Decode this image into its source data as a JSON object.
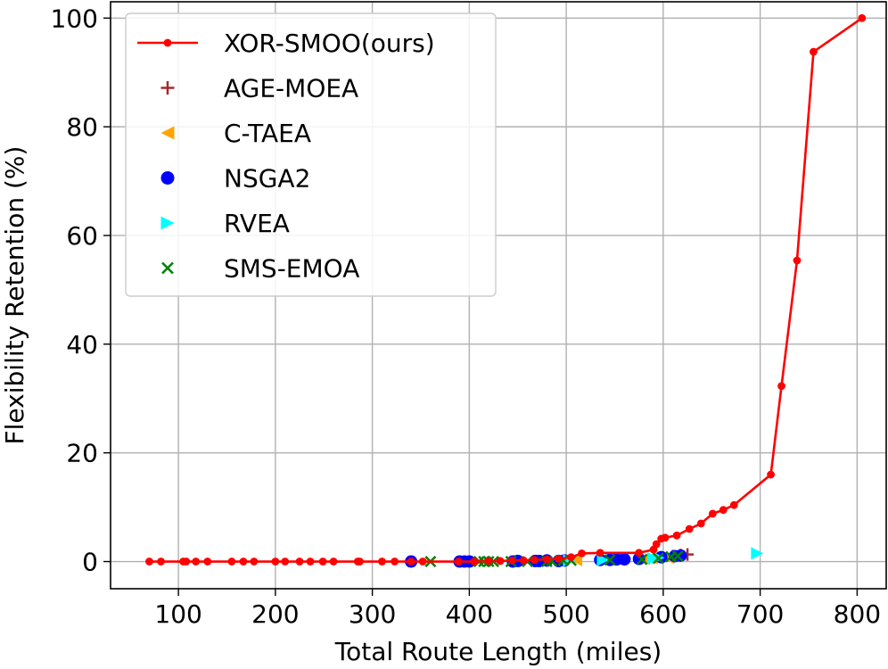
{
  "chart_data": {
    "type": "scatter",
    "title": "",
    "xlabel": "Total Route Length (miles)",
    "ylabel": "Flexibility Retention (%)",
    "xlim": [
      30,
      830
    ],
    "ylim": [
      -5,
      103
    ],
    "grid": true,
    "legend_position": "top-left",
    "x_ticks": [
      100,
      200,
      300,
      400,
      500,
      600,
      700,
      800
    ],
    "y_ticks": [
      0,
      20,
      40,
      60,
      80,
      100
    ],
    "series": [
      {
        "name": "XOR-SMOO(ours)",
        "kind": "line",
        "color": "#ff0000",
        "marker": "dot",
        "points": [
          [
            70,
            0
          ],
          [
            82,
            0
          ],
          [
            105,
            0
          ],
          [
            108,
            0
          ],
          [
            118,
            0
          ],
          [
            130,
            0
          ],
          [
            155,
            0
          ],
          [
            167,
            0
          ],
          [
            178,
            0
          ],
          [
            200,
            0
          ],
          [
            210,
            0
          ],
          [
            225,
            0
          ],
          [
            236,
            0
          ],
          [
            249,
            0
          ],
          [
            260,
            0
          ],
          [
            285,
            0
          ],
          [
            287,
            0
          ],
          [
            310,
            0
          ],
          [
            323,
            0
          ],
          [
            340,
            0
          ],
          [
            352,
            0
          ],
          [
            389,
            0
          ],
          [
            405,
            0
          ],
          [
            420,
            0.1
          ],
          [
            432,
            0.1
          ],
          [
            444,
            0.2
          ],
          [
            456,
            0.2
          ],
          [
            467,
            0.3
          ],
          [
            480,
            0.4
          ],
          [
            492,
            0.5
          ],
          [
            505,
            0.8
          ],
          [
            516,
            1.5
          ],
          [
            535,
            1.6
          ],
          [
            575,
            1.6
          ],
          [
            590,
            2.2
          ],
          [
            593,
            3.2
          ],
          [
            598,
            4.2
          ],
          [
            602,
            4.4
          ],
          [
            614,
            4.8
          ],
          [
            627,
            6
          ],
          [
            639,
            7
          ],
          [
            651,
            8.8
          ],
          [
            662,
            9.5
          ],
          [
            673,
            10.4
          ],
          [
            711,
            16
          ],
          [
            722,
            32.3
          ],
          [
            738,
            55.4
          ],
          [
            755,
            93.8
          ],
          [
            805,
            100
          ]
        ]
      },
      {
        "name": "AGE-MOEA",
        "kind": "scatter",
        "color": "#a52a2a",
        "marker": "plus",
        "points": [
          [
            625,
            1.3
          ],
          [
            618,
            1.2
          ],
          [
            610,
            1.0
          ],
          [
            560,
            0.5
          ],
          [
            480,
            0.2
          ]
        ]
      },
      {
        "name": "C-TAEA",
        "kind": "scatter",
        "color": "#ffa500",
        "marker": "triangle-left",
        "points": [
          [
            588,
            0.6
          ],
          [
            605,
            0.7
          ],
          [
            580,
            0.5
          ],
          [
            510,
            0.3
          ]
        ]
      },
      {
        "name": "NSGA2",
        "kind": "scatter",
        "color": "#0000ff",
        "marker": "circle",
        "points": [
          [
            340,
            0
          ],
          [
            390,
            0
          ],
          [
            395,
            0
          ],
          [
            400,
            0
          ],
          [
            445,
            0
          ],
          [
            450,
            0.1
          ],
          [
            468,
            0.1
          ],
          [
            472,
            0.1
          ],
          [
            480,
            0.2
          ],
          [
            492,
            0.1
          ],
          [
            498,
            0.2
          ],
          [
            535,
            0.3
          ],
          [
            545,
            0.3
          ],
          [
            552,
            0.4
          ],
          [
            560,
            0.4
          ],
          [
            575,
            0.5
          ],
          [
            598,
            0.8
          ],
          [
            612,
            1.0
          ],
          [
            618,
            1.1
          ]
        ]
      },
      {
        "name": "RVEA",
        "kind": "scatter",
        "color": "#00ffff",
        "marker": "triangle-right",
        "points": [
          [
            697,
            1.5
          ],
          [
            590,
            0.6
          ],
          [
            595,
            0.7
          ],
          [
            538,
            0.3
          ],
          [
            503,
            0.2
          ]
        ]
      },
      {
        "name": "SMS-EMOA",
        "kind": "scatter",
        "color": "#008000",
        "marker": "x",
        "points": [
          [
            360,
            0
          ],
          [
            410,
            0
          ],
          [
            415,
            0
          ],
          [
            420,
            0
          ],
          [
            425,
            0
          ],
          [
            443,
            0
          ],
          [
            460,
            0
          ],
          [
            480,
            0
          ],
          [
            485,
            0.1
          ],
          [
            497,
            0.2
          ],
          [
            505,
            0.2
          ],
          [
            545,
            0.3
          ],
          [
            578,
            0.4
          ],
          [
            595,
            0.6
          ],
          [
            608,
            0.9
          ],
          [
            615,
            1.0
          ]
        ]
      }
    ]
  }
}
